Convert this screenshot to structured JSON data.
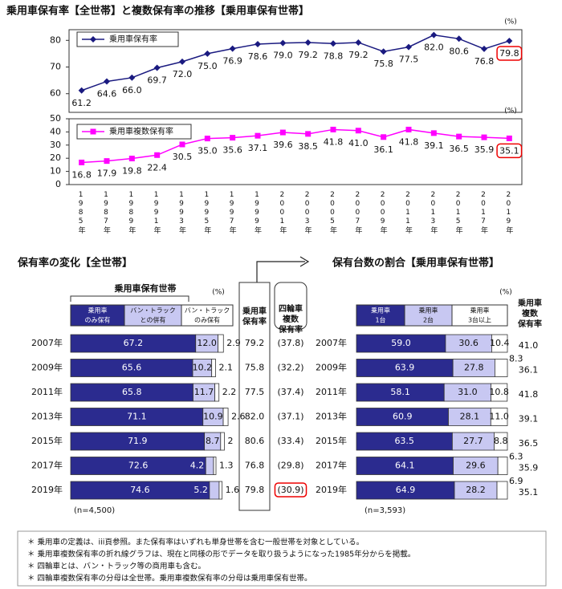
{
  "title": "乗用車保有率【全世帯】と複数保有率の推移【乗用車保有世帯】",
  "chart_data": [
    {
      "type": "line",
      "unit": "(%)",
      "ylim": [
        53,
        84
      ],
      "yticks": [
        60,
        70,
        80
      ],
      "series": [
        {
          "name": "乗用車保有率",
          "color": "#1a1a80",
          "marker": "diamond",
          "values": [
            61.2,
            64.6,
            66.0,
            69.7,
            72.0,
            75.0,
            76.9,
            78.6,
            79.0,
            79.2,
            78.8,
            79.2,
            75.8,
            77.5,
            82.0,
            80.6,
            76.8,
            79.8
          ],
          "value_labels": [
            "61.2",
            "64.6",
            "66.0",
            "69.7",
            "72.0",
            "75.0",
            "76.9",
            "78.6",
            "79.0",
            "79.2",
            "78.8",
            "79.2",
            "75.8",
            "77.5",
            "82.0",
            "80.6",
            "76.8",
            "79.8"
          ]
        }
      ]
    },
    {
      "type": "line",
      "unit": "(%)",
      "ylim": [
        0,
        50
      ],
      "yticks": [
        0,
        10,
        20,
        30,
        40,
        50
      ],
      "categories": [
        "1985年",
        "1987年",
        "1989年",
        "1991年",
        "1993年",
        "1995年",
        "1997年",
        "1999年",
        "2001年",
        "2003年",
        "2005年",
        "2007年",
        "2009年",
        "2011年",
        "2013年",
        "2015年",
        "2017年",
        "2019年"
      ],
      "series": [
        {
          "name": "乗用車複数保有率",
          "color": "#ff00ff",
          "marker": "square",
          "values": [
            16.8,
            17.9,
            19.8,
            22.4,
            30.5,
            35.0,
            35.6,
            37.1,
            39.6,
            38.5,
            41.8,
            41.0,
            36.1,
            41.8,
            39.1,
            36.5,
            35.9,
            35.1
          ],
          "value_labels": [
            "16.8",
            "17.9",
            "19.8",
            "22.4",
            "30.5",
            "35.0",
            "35.6",
            "37.1",
            "39.6",
            "38.5",
            "41.8",
            "41.0",
            "36.1",
            "41.8",
            "39.1",
            "36.5",
            "35.9",
            "35.1"
          ]
        }
      ]
    },
    {
      "type": "bar",
      "orientation": "horizontal",
      "stacked": true,
      "title": "保有率の変化【全世帯】",
      "group_label": "乗用車保有世帯",
      "unit": "(%)",
      "note": "(n=4,500)",
      "xlim": [
        0,
        85
      ],
      "categories": [
        "2007年",
        "2009年",
        "2011年",
        "2013年",
        "2015年",
        "2017年",
        "2019年"
      ],
      "series": [
        {
          "name": [
            "乗用車",
            "のみ保有"
          ],
          "color": "#2b2b8f",
          "values": [
            67.2,
            65.6,
            65.8,
            71.1,
            71.9,
            72.6,
            74.6
          ]
        },
        {
          "name": [
            "バン・トラック",
            "との併有"
          ],
          "color": "#c8c8f2",
          "values": [
            12.0,
            10.2,
            11.7,
            10.9,
            8.7,
            4.2,
            5.2
          ],
          "value_labels": [
            "12.0",
            "10.2",
            "11.7",
            "10.9",
            "8.7",
            "4.2",
            "5.2"
          ]
        },
        {
          "name": [
            "バン・トラック",
            "のみ保有"
          ],
          "color": "#ffffff",
          "values": [
            2.9,
            2.1,
            2.2,
            2.6,
            2.0,
            1.3,
            1.6
          ]
        }
      ],
      "columns": [
        {
          "name": [
            "乗用車",
            "保有率"
          ],
          "values": [
            79.2,
            75.8,
            77.5,
            82.0,
            80.6,
            76.8,
            79.8
          ],
          "value_labels": [
            "79.2",
            "75.8",
            "77.5",
            "82.0",
            "80.6",
            "76.8",
            "79.8"
          ]
        },
        {
          "name": [
            "四輪車",
            "複数",
            "保有率"
          ],
          "values": [
            37.8,
            32.2,
            37.4,
            37.1,
            33.4,
            29.8,
            30.9
          ],
          "value_labels": [
            "(37.8)",
            "(32.2)",
            "(37.4)",
            "(37.1)",
            "(33.4)",
            "(29.8)",
            "(30.9)"
          ]
        }
      ]
    },
    {
      "type": "bar",
      "orientation": "horizontal",
      "stacked": true,
      "title": "保有台数の割合【乗用車保有世帯】",
      "unit": "(%)",
      "note": "(n=3,593)",
      "xlim": [
        0,
        100
      ],
      "categories": [
        "2007年",
        "2009年",
        "2011年",
        "2013年",
        "2015年",
        "2017年",
        "2019年"
      ],
      "series": [
        {
          "name": [
            "乗用車",
            "1台"
          ],
          "color": "#2b2b8f",
          "values": [
            59.0,
            63.9,
            58.1,
            60.9,
            63.5,
            64.1,
            64.9
          ],
          "value_labels": [
            "59.0",
            "63.9",
            "58.1",
            "60.9",
            "63.5",
            "64.1",
            "64.9"
          ]
        },
        {
          "name": [
            "乗用車",
            "2台"
          ],
          "color": "#c8c8f2",
          "values": [
            30.6,
            27.8,
            31.0,
            28.1,
            27.7,
            29.6,
            28.2
          ],
          "value_labels": [
            "30.6",
            "27.8",
            "31.0",
            "28.1",
            "27.7",
            "29.6",
            "28.2"
          ]
        },
        {
          "name": [
            "乗用車",
            "3台以上"
          ],
          "color": "#ffffff",
          "values": [
            10.4,
            8.3,
            10.8,
            11.0,
            8.8,
            6.3,
            6.9
          ],
          "value_labels": [
            "10.4",
            "8.3",
            "10.8",
            "11.0",
            "8.8",
            "6.3",
            "6.9"
          ]
        }
      ],
      "columns": [
        {
          "name": [
            "乗用車",
            "複数",
            "保有率"
          ],
          "values": [
            41.0,
            36.1,
            41.8,
            39.1,
            36.5,
            35.9,
            35.1
          ],
          "value_labels": [
            "41.0",
            "36.1",
            "41.8",
            "39.1",
            "36.5",
            "35.9",
            "35.1"
          ]
        }
      ]
    }
  ],
  "notes": [
    "＊ 乗用車の定義は、iii頁参照。また保有率はいずれも単身世帯を含む一般世帯を対象としている。",
    "＊ 乗用車複数保有率の折れ線グラフは、現在と同様の形でデータを取り扱うようになった1985年分からを掲載。",
    "＊ 四輪車とは、バン・トラック等の商用車も含む。",
    "＊ 四輪車複数保有率の分母は全世帯。乗用車複数保有率の分母は乗用車保有世帯。"
  ]
}
